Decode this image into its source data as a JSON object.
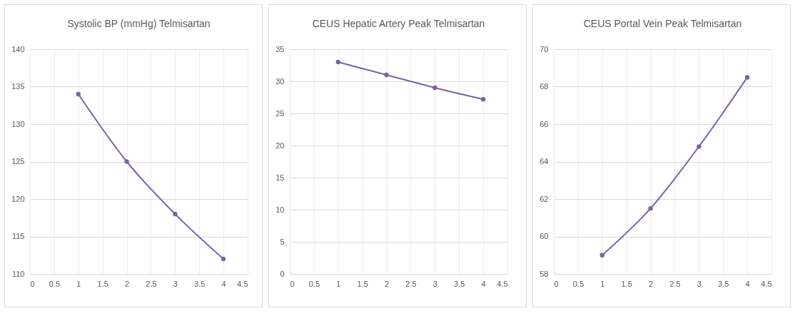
{
  "chart_data": [
    {
      "type": "line",
      "title": "Systolic BP (mmHg) Telmisartan",
      "x": [
        1,
        2,
        3,
        4
      ],
      "series": [
        {
          "color": "#7b62a3",
          "values": [
            134,
            125,
            118,
            112
          ]
        }
      ],
      "xlim": [
        0,
        4.5
      ],
      "xticks": [
        0,
        0.5,
        1,
        1.5,
        2,
        2.5,
        3,
        3.5,
        4,
        4.5
      ],
      "ylim": [
        110,
        140
      ],
      "yticks": [
        110,
        115,
        120,
        125,
        130,
        135,
        140
      ],
      "grid": true,
      "marker": "circle",
      "line_style": "solid"
    },
    {
      "type": "line",
      "title": "CEUS Hepatic Artery Peak Telmisartan",
      "x": [
        1,
        2,
        3,
        4
      ],
      "series": [
        {
          "color": "#7b62a3",
          "values": [
            33,
            31,
            29,
            27.2
          ]
        }
      ],
      "xlim": [
        0,
        4.5
      ],
      "xticks": [
        0,
        0.5,
        1,
        1.5,
        2,
        2.5,
        3,
        3.5,
        4,
        4.5
      ],
      "ylim": [
        0,
        35
      ],
      "yticks": [
        0,
        5,
        10,
        15,
        20,
        25,
        30,
        35
      ],
      "grid": true,
      "marker": "circle",
      "line_style": "solid"
    },
    {
      "type": "line",
      "title": "CEUS Portal Vein Peak Telmisartan",
      "x": [
        1,
        2,
        3,
        4
      ],
      "series": [
        {
          "color": "#7b62a3",
          "values": [
            59,
            61.5,
            64.8,
            68.5
          ]
        }
      ],
      "xlim": [
        0,
        4.5
      ],
      "xticks": [
        0,
        0.5,
        1,
        1.5,
        2,
        2.5,
        3,
        3.5,
        4,
        4.5
      ],
      "ylim": [
        58,
        70
      ],
      "yticks": [
        58,
        60,
        62,
        64,
        66,
        68,
        70
      ],
      "grid": true,
      "marker": "circle",
      "line_style": "solid"
    }
  ]
}
